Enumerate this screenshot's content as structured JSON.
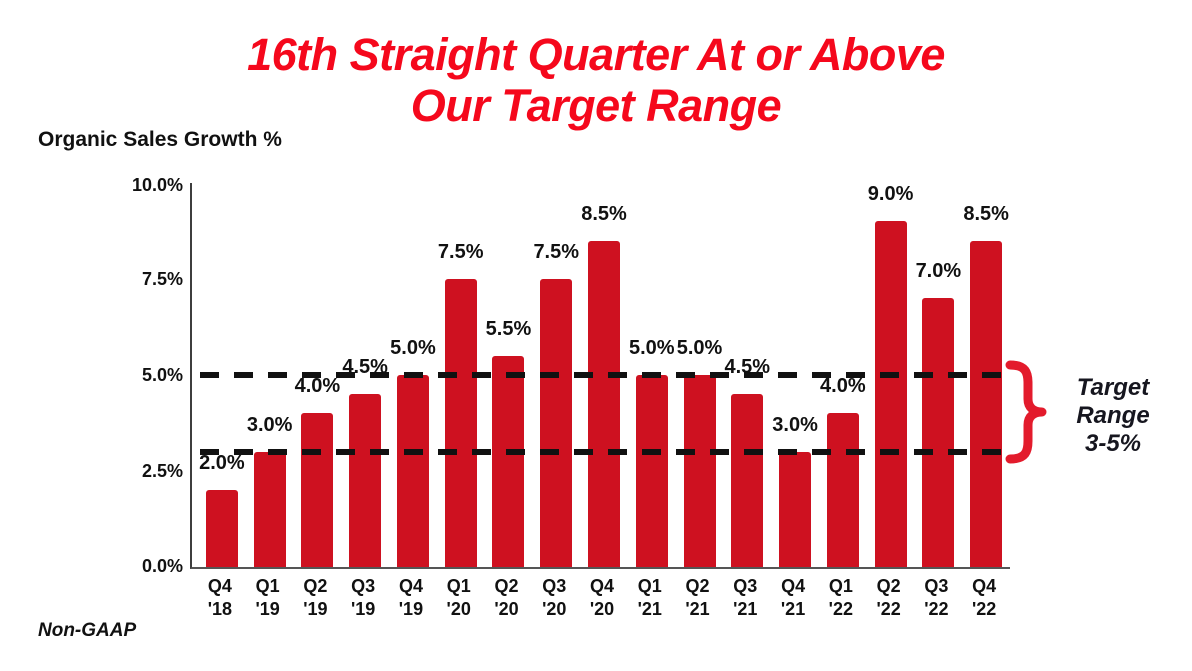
{
  "title": {
    "line1": "16th Straight Quarter At or Above",
    "line2": "Our Target Range"
  },
  "axis_title": "Organic Sales Growth %",
  "footnote": "Non-GAAP",
  "annotation": {
    "line1": "Target",
    "line2": "Range",
    "line3": "3-5%"
  },
  "colors": {
    "title_red": "#F5081C",
    "bar_red": "#CE1120",
    "brace_red": "#E31B2C",
    "ink": "#111111",
    "axis_gray": "#555555",
    "annotation_ink": "#16161F"
  },
  "chart_data": {
    "type": "bar",
    "title": "Organic Sales Growth %",
    "xlabel": "",
    "ylabel": "Organic Sales Growth %",
    "ylim": [
      0,
      10
    ],
    "grid": false,
    "legend": false,
    "yticks": [
      "10.0%",
      "7.5%",
      "5.0%",
      "2.5%",
      "0.0%"
    ],
    "categories": [
      {
        "quarter": "Q4",
        "year": "'18"
      },
      {
        "quarter": "Q1",
        "year": "'19"
      },
      {
        "quarter": "Q2",
        "year": "'19"
      },
      {
        "quarter": "Q3",
        "year": "'19"
      },
      {
        "quarter": "Q4",
        "year": "'19"
      },
      {
        "quarter": "Q1",
        "year": "'20"
      },
      {
        "quarter": "Q2",
        "year": "'20"
      },
      {
        "quarter": "Q3",
        "year": "'20"
      },
      {
        "quarter": "Q4",
        "year": "'20"
      },
      {
        "quarter": "Q1",
        "year": "'21"
      },
      {
        "quarter": "Q2",
        "year": "'21"
      },
      {
        "quarter": "Q3",
        "year": "'21"
      },
      {
        "quarter": "Q4",
        "year": "'21"
      },
      {
        "quarter": "Q1",
        "year": "'22"
      },
      {
        "quarter": "Q2",
        "year": "'22"
      },
      {
        "quarter": "Q3",
        "year": "'22"
      },
      {
        "quarter": "Q4",
        "year": "'22"
      }
    ],
    "values": [
      2.0,
      3.0,
      4.0,
      4.5,
      5.0,
      7.5,
      5.5,
      7.5,
      8.5,
      5.0,
      5.0,
      4.5,
      3.0,
      4.0,
      9.0,
      7.0,
      8.5
    ],
    "labels": [
      "2.0%",
      "3.0%",
      "4.0%",
      "4.5%",
      "5.0%",
      "7.5%",
      "5.5%",
      "7.5%",
      "8.5%",
      "5.0%",
      "5.0%",
      "4.5%",
      "3.0%",
      "4.0%",
      "9.0%",
      "7.0%",
      "8.5%"
    ],
    "target_lines": [
      5.0,
      3.0
    ],
    "target_range_label": "Target Range 3-5%"
  }
}
